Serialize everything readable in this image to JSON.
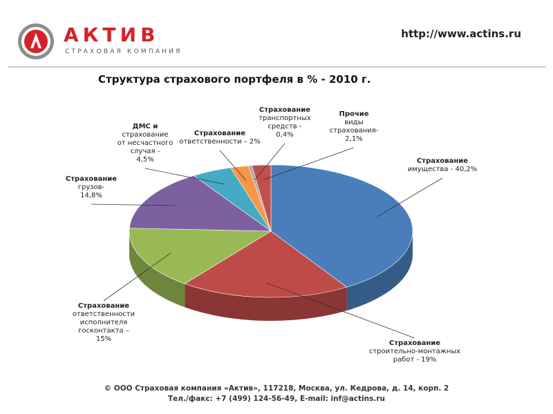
{
  "header": {
    "brand": "АКТИВ",
    "brand_sub": "СТРАХОВАЯ КОМПАНИЯ",
    "url": "http://www.actins.ru",
    "brand_color": "#d7212a"
  },
  "chart_data": {
    "type": "pie",
    "title": "Структура страхового портфеля в % - 2010 г.",
    "unit": "%",
    "slices": [
      {
        "label_lines": [
          "Страхование",
          "имущества - 40,2%"
        ],
        "value": 40.2,
        "color": "#4a7ebb"
      },
      {
        "label_lines": [
          "Страхование",
          "строительно-монтажных",
          "работ - 19%"
        ],
        "value": 19,
        "color": "#be4b48"
      },
      {
        "label_lines": [
          "Страхование",
          "ответственности",
          "исполнителя",
          "госконтакта –",
          "15%"
        ],
        "value": 15,
        "color": "#98b954"
      },
      {
        "label_lines": [
          "Страхование",
          "грузов-",
          "14,8%"
        ],
        "value": 14.8,
        "color": "#7d60a0"
      },
      {
        "label_lines": [
          "ДМС и",
          "страхование",
          "от несчастного",
          "случая -",
          "4,5%"
        ],
        "value": 4.5,
        "color": "#46aac5"
      },
      {
        "label_lines": [
          "Страхование",
          "ответственности – 2%"
        ],
        "value": 2,
        "color": "#f79646"
      },
      {
        "label_lines": [
          "Страхование",
          "транспортных",
          "средств -",
          "0,4%"
        ],
        "value": 0.4,
        "color": "#a9a9a9"
      },
      {
        "label_lines": [
          "Прочие",
          "виды",
          "страхования-",
          "2,1%"
        ],
        "value": 2.1,
        "color": "#c0504d"
      }
    ]
  },
  "footer": {
    "line1": "© ООО Страховая компания «Актив», 117218, Москва, ул. Кедрова, д. 14,  корп. 2",
    "line2": "Тел./факс: +7 (499) 124-56-49, E-mail: inf@actins.ru"
  }
}
